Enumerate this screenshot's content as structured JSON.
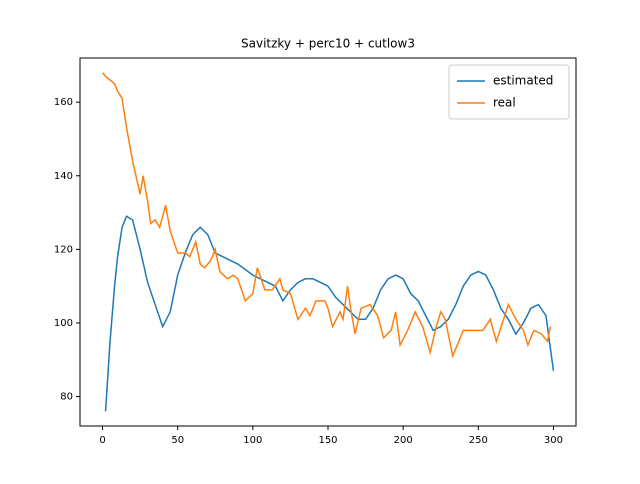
{
  "chart_data": {
    "type": "line",
    "title": "Savitzky + perc10 + cutlow3",
    "xlim": [
      -15,
      315
    ],
    "ylim": [
      72,
      172
    ],
    "xticks": [
      0,
      50,
      100,
      150,
      200,
      250,
      300
    ],
    "yticks": [
      80,
      100,
      120,
      140,
      160
    ],
    "grid": false,
    "legend": "upper right",
    "series": [
      {
        "name": "estimated",
        "color": "#1f77b4",
        "x": [
          2,
          5,
          8,
          10,
          13,
          16,
          20,
          25,
          30,
          35,
          40,
          45,
          50,
          55,
          60,
          65,
          70,
          75,
          80,
          85,
          90,
          100,
          110,
          115,
          120,
          125,
          130,
          135,
          140,
          145,
          150,
          155,
          160,
          165,
          170,
          175,
          180,
          185,
          190,
          195,
          200,
          205,
          210,
          215,
          220,
          225,
          230,
          235,
          240,
          245,
          250,
          255,
          260,
          265,
          270,
          275,
          280,
          285,
          290,
          295,
          300
        ],
        "values": [
          76,
          95,
          110,
          118,
          126,
          129,
          128,
          120,
          111,
          105,
          99,
          103,
          113,
          119,
          124,
          126,
          124,
          119,
          118,
          117,
          116,
          113,
          111,
          110,
          106,
          109,
          111,
          112,
          112,
          111,
          110,
          107,
          105,
          103,
          101,
          101,
          104,
          109,
          112,
          113,
          112,
          108,
          106,
          102,
          98,
          99,
          101,
          105,
          110,
          113,
          114,
          113,
          109,
          104,
          101,
          97,
          100,
          104,
          105,
          102,
          87
        ]
      },
      {
        "name": "real",
        "color": "#ff7f0e",
        "x": [
          0,
          2,
          5,
          8,
          10,
          13,
          16,
          20,
          25,
          27,
          30,
          32,
          35,
          38,
          42,
          45,
          50,
          55,
          58,
          62,
          65,
          68,
          72,
          75,
          78,
          83,
          87,
          90,
          95,
          100,
          103,
          108,
          113,
          118,
          120,
          125,
          130,
          135,
          138,
          142,
          148,
          150,
          153,
          158,
          160,
          163,
          165,
          168,
          172,
          178,
          183,
          187,
          192,
          195,
          198,
          203,
          208,
          213,
          218,
          222,
          225,
          228,
          233,
          236,
          240,
          245,
          250,
          253,
          258,
          262,
          266,
          270,
          275,
          280,
          283,
          287,
          292,
          296,
          298
        ],
        "values": [
          168,
          167,
          166,
          165,
          163,
          161,
          153,
          144,
          135,
          140,
          133,
          127,
          128,
          126,
          132,
          125,
          119,
          119,
          118,
          122,
          116,
          115,
          117,
          120,
          114,
          112,
          113,
          112,
          106,
          108,
          115,
          109,
          109,
          112,
          109,
          108,
          101,
          104,
          102,
          106,
          106,
          104,
          99,
          103,
          101,
          110,
          104,
          97,
          104,
          105,
          102,
          96,
          98,
          103,
          94,
          98,
          103,
          99,
          92,
          99,
          103,
          101,
          91,
          94,
          98,
          98,
          98,
          98,
          101,
          95,
          100,
          105,
          101,
          98,
          94,
          98,
          97,
          95,
          99
        ]
      }
    ]
  }
}
